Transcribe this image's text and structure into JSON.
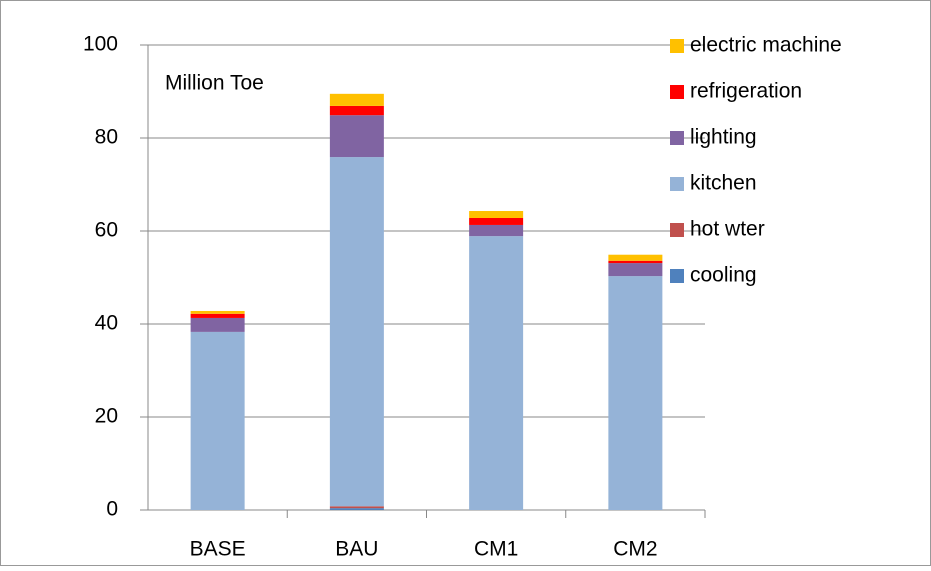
{
  "chart_data": {
    "type": "stacked-bar",
    "annotation": "Million Toe",
    "categories": [
      "BASE",
      "BAU",
      "CM1",
      "CM2"
    ],
    "series": [
      {
        "name": "cooling",
        "color": "#4f81bd",
        "values": [
          0,
          0.4,
          0,
          0
        ]
      },
      {
        "name": "hot wter",
        "color": "#c0504d",
        "values": [
          0,
          0.4,
          0,
          0
        ]
      },
      {
        "name": "kitchen",
        "color": "#95b3d7",
        "values": [
          38.3,
          75.1,
          58.9,
          50.3
        ]
      },
      {
        "name": "lighting",
        "color": "#8064a2",
        "values": [
          3,
          9,
          2.4,
          2.8
        ]
      },
      {
        "name": "refrigeration",
        "color": "#ff0000",
        "values": [
          0.9,
          2,
          1.5,
          0.5
        ]
      },
      {
        "name": "electric machine",
        "color": "#ffc000",
        "values": [
          0.6,
          2.6,
          1.5,
          1.3
        ]
      }
    ],
    "ylim": [
      0,
      100
    ],
    "yticks": [
      0,
      20,
      40,
      60,
      80,
      100
    ],
    "grid": true,
    "legend": "right"
  }
}
